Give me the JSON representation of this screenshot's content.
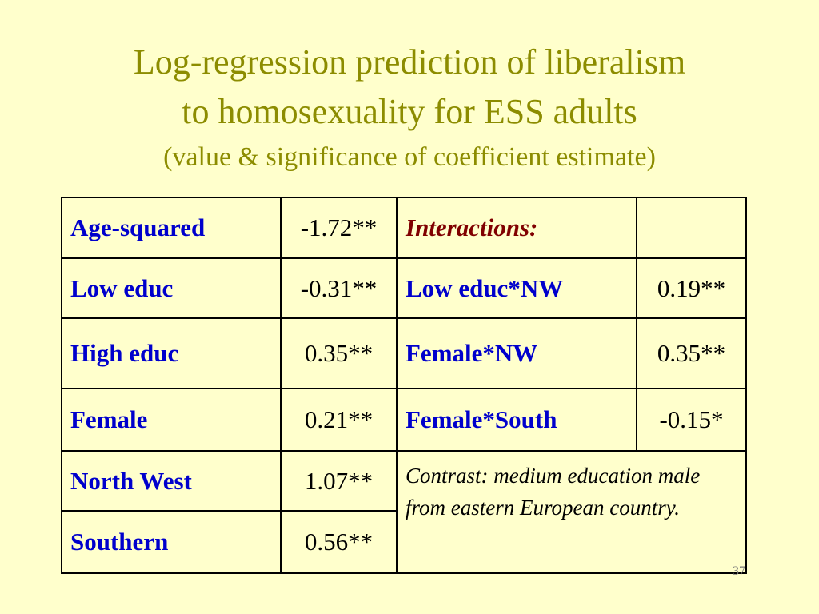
{
  "header": {
    "title_line1": "Log-regression prediction of liberalism",
    "title_line2": "to homosexuality for ESS adults",
    "subtitle": "(value & significance of coefficient estimate)"
  },
  "table": {
    "rows": [
      [
        "Age-squared",
        "-1.72**",
        "Interactions:"
      ],
      [
        "Low educ",
        "-0.31**",
        "Low educ*NW",
        "0.19**"
      ],
      [
        "High educ",
        "0.35**",
        "Female*NW",
        "0.35**"
      ],
      [
        "Female",
        "0.21**",
        "Female*South",
        "-0.15*"
      ],
      [
        "North West",
        "1.07**"
      ],
      [
        "Southern",
        "0.56**"
      ]
    ],
    "contrast_note": "Contrast: medium education male from eastern European country."
  },
  "page_number": "37"
}
